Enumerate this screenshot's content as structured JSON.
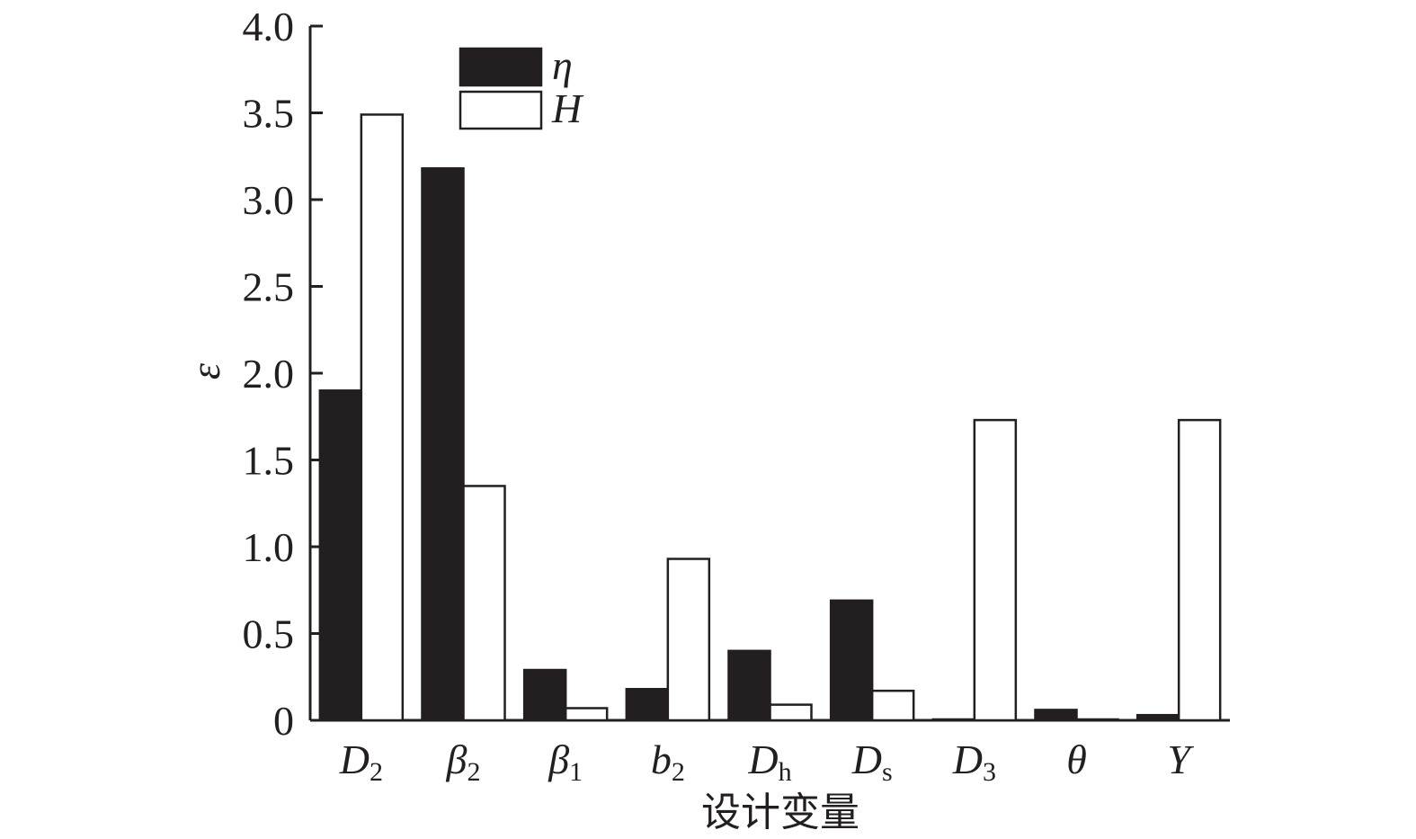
{
  "chart_data": {
    "type": "bar",
    "xlabel": "设计变量",
    "ylabel": "ε",
    "ylim": [
      0,
      4.0
    ],
    "yticks": [
      "0",
      "0.5",
      "1.0",
      "1.5",
      "2.0",
      "2.5",
      "3.0",
      "3.5",
      "4.0"
    ],
    "categories": [
      {
        "base": "D",
        "sub": "2"
      },
      {
        "base": "β",
        "sub": "2"
      },
      {
        "base": "β",
        "sub": "1"
      },
      {
        "base": "b",
        "sub": "2"
      },
      {
        "base": "D",
        "sub": "h"
      },
      {
        "base": "D",
        "sub": "s"
      },
      {
        "base": "D",
        "sub": "3"
      },
      {
        "base": "θ",
        "sub": ""
      },
      {
        "base": "Y",
        "sub": ""
      }
    ],
    "series": [
      {
        "name": "η",
        "color": "#231f20",
        "values": [
          1.9,
          3.18,
          0.29,
          0.18,
          0.4,
          0.69,
          0.005,
          0.06,
          0.03
        ]
      },
      {
        "name": "H",
        "color": "#ffffff",
        "values": [
          3.49,
          1.35,
          0.07,
          0.93,
          0.09,
          0.17,
          1.73,
          0.005,
          1.73
        ]
      }
    ],
    "legend_position": "top-left",
    "grid": false
  }
}
